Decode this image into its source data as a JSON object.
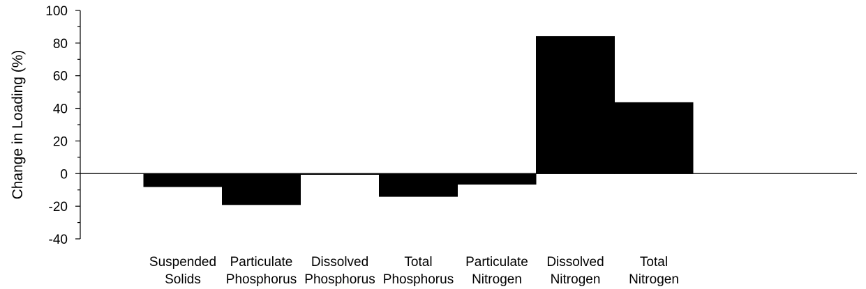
{
  "chart_data": {
    "type": "bar",
    "categories": [
      [
        "Suspended",
        "Solids"
      ],
      [
        "Particulate",
        "Phosphorus"
      ],
      [
        "Dissolved",
        "Phosphorus"
      ],
      [
        "Total",
        "Phosphorus"
      ],
      [
        "Particulate",
        "Nitrogen"
      ],
      [
        "Dissolved",
        "Nitrogen"
      ],
      [
        "Total",
        "Nitrogen"
      ]
    ],
    "values": [
      -8,
      -19,
      -0.5,
      -14,
      -6.5,
      84,
      43.5
    ],
    "title": "",
    "xlabel": "",
    "ylabel": "Change in Loading (%)",
    "ylim": [
      -40,
      100
    ],
    "yticks": [
      -40,
      -20,
      0,
      20,
      40,
      60,
      80,
      100
    ],
    "bar_color": "#000000",
    "grid": false,
    "legend": "none"
  }
}
